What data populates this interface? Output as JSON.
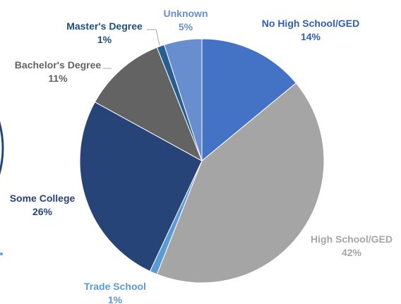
{
  "chart_data": {
    "type": "pie",
    "slices": [
      {
        "label": "No High School/GED",
        "percent_label": "14%",
        "value": 14,
        "color": "#4472c4",
        "label_color": "#2f5fb3"
      },
      {
        "label": "High School/GED",
        "percent_label": "42%",
        "value": 42,
        "color": "#a5a5a5",
        "label_color": "#a5a5a5"
      },
      {
        "label": "Trade School",
        "percent_label": "1%",
        "value": 1,
        "color": "#5b9bd5",
        "label_color": "#5b9bd5"
      },
      {
        "label": "Some College",
        "percent_label": "26%",
        "value": 26,
        "color": "#264478",
        "label_color": "#264478"
      },
      {
        "label": "Bachelor's Degree",
        "percent_label": "11%",
        "value": 11,
        "color": "#636363",
        "label_color": "#636363"
      },
      {
        "label": "Master's Degree",
        "percent_label": "1%",
        "value": 1,
        "color": "#255e91",
        "label_color": "#1f4e79"
      },
      {
        "label": "Unknown",
        "percent_label": "5%",
        "value": 5,
        "color": "#698ed0",
        "label_color": "#698ed0"
      }
    ],
    "start_angle_deg": 0,
    "direction": "clockwise",
    "legend": "none",
    "data_labels": "outside"
  }
}
